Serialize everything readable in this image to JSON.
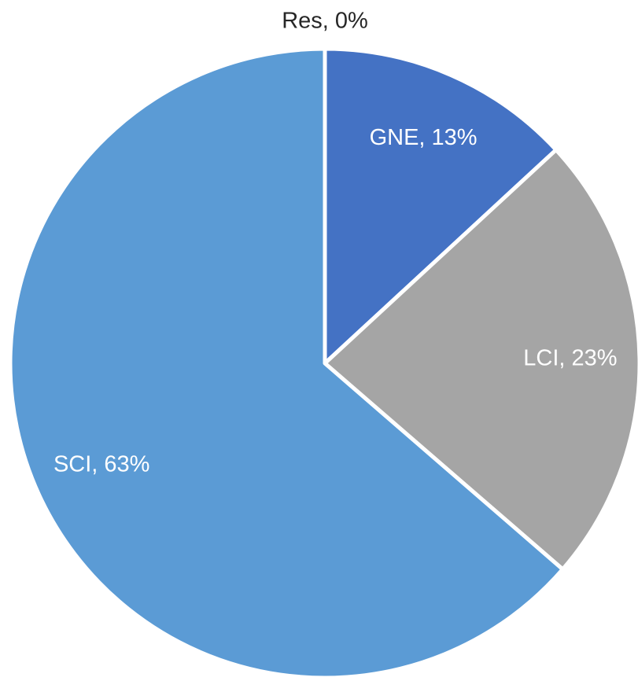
{
  "chart_data": {
    "type": "pie",
    "categories": [
      "Res",
      "GNE",
      "LCI",
      "SCI"
    ],
    "values": [
      0,
      13,
      23,
      63
    ],
    "value_labels": [
      "Res, 0%",
      "GNE, 13%",
      "LCI, 23%",
      "SCI, 63%"
    ],
    "colors": [
      "#ed7d31",
      "#4472c4",
      "#a5a5a5",
      "#5b9bd5"
    ]
  }
}
